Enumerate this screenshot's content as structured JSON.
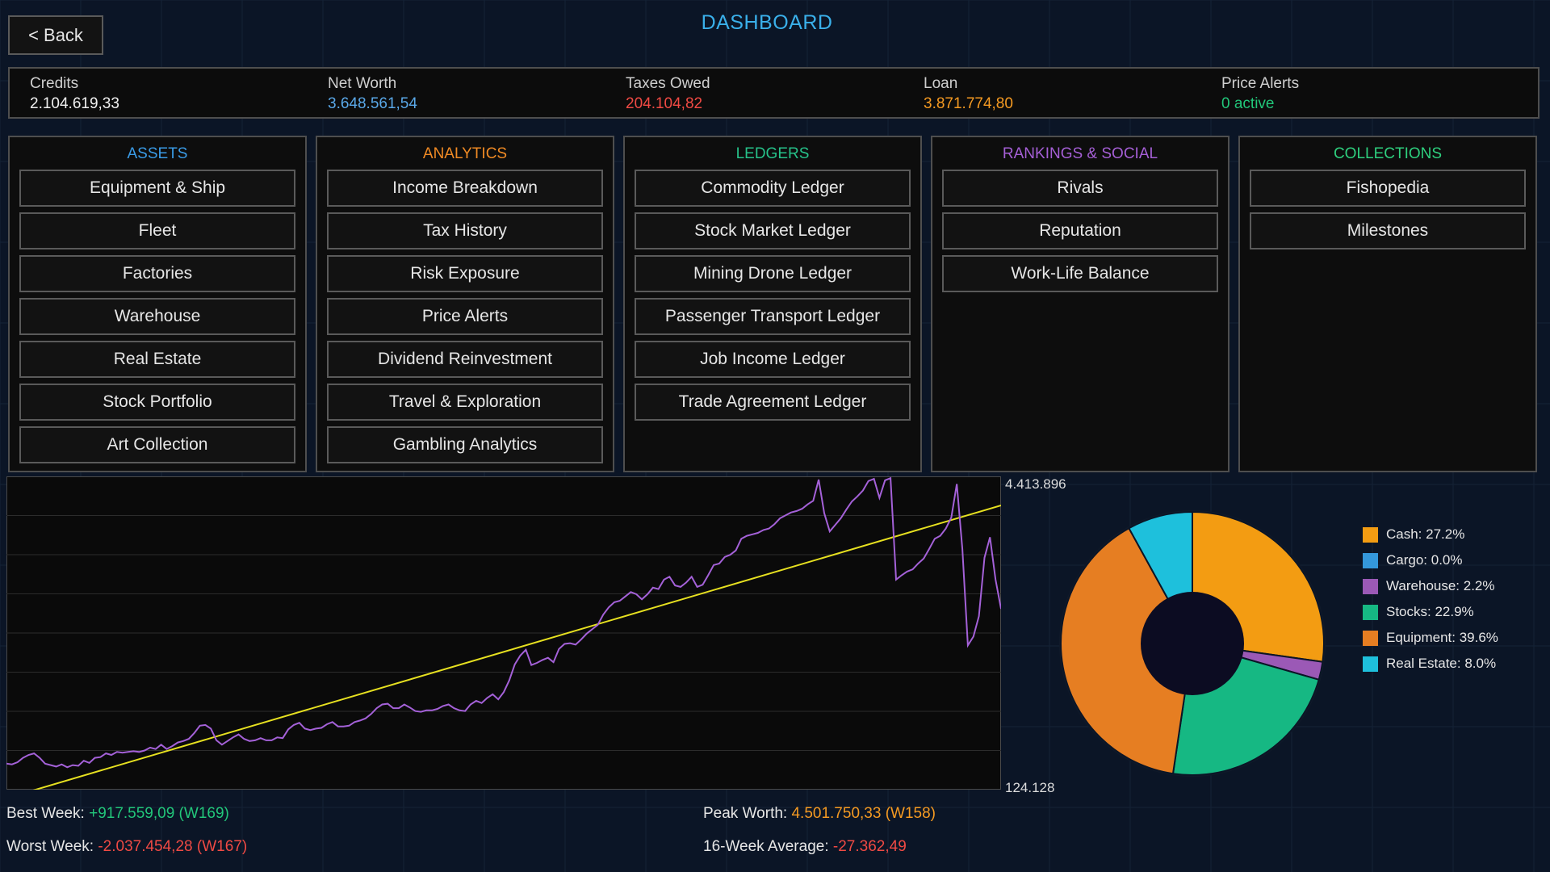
{
  "header": {
    "back_label": "< Back",
    "title": "DASHBOARD"
  },
  "stats": [
    {
      "label": "Credits",
      "value": "2.104.619,33",
      "color": "#f0f0f0"
    },
    {
      "label": "Net Worth",
      "value": "3.648.561,54",
      "color": "#5aa8e8"
    },
    {
      "label": "Taxes Owed",
      "value": "204.104,82",
      "color": "#f04a44"
    },
    {
      "label": "Loan",
      "value": "3.871.774,80",
      "color": "#f59a22"
    },
    {
      "label": "Price Alerts",
      "value": "0 active",
      "color": "#22c67a"
    }
  ],
  "panels": [
    {
      "title": "ASSETS",
      "color": "#3a9be6",
      "items": [
        "Equipment & Ship",
        "Fleet",
        "Factories",
        "Warehouse",
        "Real Estate",
        "Stock Portfolio",
        "Art Collection"
      ]
    },
    {
      "title": "ANALYTICS",
      "color": "#f08a24",
      "items": [
        "Income Breakdown",
        "Tax History",
        "Risk Exposure",
        "Price Alerts",
        "Dividend Reinvestment",
        "Travel & Exploration",
        "Gambling Analytics"
      ]
    },
    {
      "title": "LEDGERS",
      "color": "#26c28a",
      "items": [
        "Commodity Ledger",
        "Stock Market Ledger",
        "Mining Drone Ledger",
        "Passenger Transport Ledger",
        "Job Income Ledger",
        "Trade Agreement Ledger"
      ]
    },
    {
      "title": "RANKINGS & SOCIAL",
      "color": "#a55fd6",
      "items": [
        "Rivals",
        "Reputation",
        "Work-Life Balance"
      ]
    },
    {
      "title": "COLLECTIONS",
      "color": "#2ed07e",
      "items": [
        "Fishopedia",
        "Milestones"
      ]
    }
  ],
  "chart_data": [
    {
      "type": "line",
      "y_max_label": "4.413.896",
      "y_min_label": "124.128",
      "ylim": [
        124128,
        4413896
      ],
      "grid": true,
      "series": [
        {
          "color": "#a461d8",
          "values": [
            480000,
            470000,
            500000,
            560000,
            600000,
            620000,
            560000,
            480000,
            460000,
            440000,
            470000,
            430000,
            460000,
            450000,
            520000,
            490000,
            560000,
            570000,
            620000,
            600000,
            640000,
            630000,
            640000,
            650000,
            640000,
            660000,
            700000,
            680000,
            740000,
            680000,
            720000,
            770000,
            790000,
            820000,
            900000,
            1000000,
            1010000,
            960000,
            800000,
            740000,
            790000,
            840000,
            880000,
            820000,
            790000,
            800000,
            830000,
            800000,
            800000,
            840000,
            830000,
            950000,
            1010000,
            1040000,
            960000,
            940000,
            960000,
            970000,
            1020000,
            1050000,
            990000,
            990000,
            1000000,
            1050000,
            1070000,
            1100000,
            1160000,
            1240000,
            1290000,
            1300000,
            1240000,
            1240000,
            1290000,
            1250000,
            1200000,
            1190000,
            1210000,
            1210000,
            1230000,
            1270000,
            1290000,
            1240000,
            1210000,
            1200000,
            1290000,
            1340000,
            1310000,
            1380000,
            1430000,
            1360000,
            1460000,
            1620000,
            1840000,
            1960000,
            2040000,
            1830000,
            1860000,
            1900000,
            1930000,
            1870000,
            2050000,
            2120000,
            2130000,
            2110000,
            2180000,
            2260000,
            2320000,
            2380000,
            2520000,
            2620000,
            2690000,
            2710000,
            2770000,
            2830000,
            2800000,
            2730000,
            2800000,
            2890000,
            2870000,
            3000000,
            3040000,
            2920000,
            2900000,
            2960000,
            3040000,
            2900000,
            2930000,
            3060000,
            3200000,
            3220000,
            3310000,
            3340000,
            3400000,
            3560000,
            3600000,
            3620000,
            3640000,
            3680000,
            3700000,
            3760000,
            3840000,
            3880000,
            3920000,
            3940000,
            3970000,
            4030000,
            4080000,
            4370000,
            3910000,
            3660000,
            3750000,
            3840000,
            3960000,
            4070000,
            4140000,
            4220000,
            4350000,
            4380000,
            4120000,
            4360000,
            4390000,
            3000000,
            3060000,
            3110000,
            3140000,
            3220000,
            3290000,
            3420000,
            3560000,
            3600000,
            3700000,
            3850000,
            4310000,
            3420000,
            2100000,
            2220000,
            2500000,
            3300000,
            3580000,
            3000000,
            2600000
          ]
        }
      ]
    },
    {
      "type": "pie",
      "donut": true,
      "slices": [
        {
          "label": "Cash: 27.2%",
          "value": 27.2,
          "color": "#f39c12"
        },
        {
          "label": "Cargo: 0.0%",
          "value": 0.0,
          "color": "#3498db"
        },
        {
          "label": "Warehouse: 2.2%",
          "value": 2.2,
          "color": "#9b59b6"
        },
        {
          "label": "Stocks: 22.9%",
          "value": 22.9,
          "color": "#16b883"
        },
        {
          "label": "Equipment: 39.6%",
          "value": 39.6,
          "color": "#e67e22"
        },
        {
          "label": "Real Estate: 8.0%",
          "value": 8.0,
          "color": "#1ec0dc"
        }
      ]
    }
  ],
  "footer": {
    "best_week_label": "Best Week: ",
    "best_week_value": "+917.559,09 (W169)",
    "worst_week_label": "Worst Week: ",
    "worst_week_value": "-2.037.454,28 (W167)",
    "peak_worth_label": "Peak Worth: ",
    "peak_worth_value": "4.501.750,33 (W158)",
    "avg_label": "16-Week Average: ",
    "avg_value": "-27.362,49"
  }
}
